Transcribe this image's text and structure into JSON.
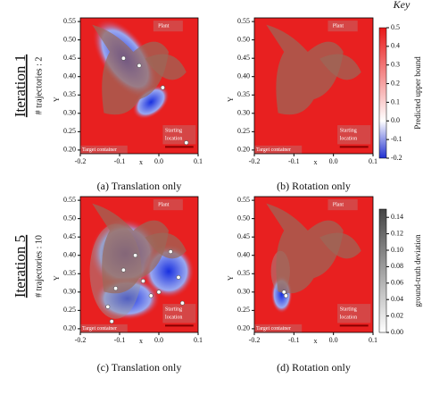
{
  "key": "Key",
  "rows": [
    {
      "title": "Iteration 1",
      "subtitle": "# trajectories : 2"
    },
    {
      "title": "Iteration 5",
      "subtitle": "# trajectories : 10"
    }
  ],
  "colorbars": [
    {
      "label": "Predicted upper bound",
      "lim": [
        -0.2,
        0.5
      ],
      "ticks": [
        0.5,
        0.4,
        0.3,
        0.2,
        0.1,
        {
          "value": 0,
          "label": "0.0"
        },
        -0.1,
        -0.2
      ],
      "colors": [
        "#2030d0",
        "#ffffff",
        "#e81818"
      ]
    },
    {
      "label": "ground-truth deviation",
      "lim": [
        0,
        0.15
      ],
      "ticks": [
        0.14,
        0.12,
        {
          "value": 0.1,
          "label": "0.10"
        },
        0.08,
        0.06,
        0.04,
        0.02,
        {
          "value": 0,
          "label": "0.00"
        }
      ],
      "colors": [
        "#ffffff",
        "#444444"
      ]
    }
  ],
  "chart_data": [
    {
      "type": "heatmap",
      "caption": "(a) Translation only",
      "xlabel": "x",
      "ylabel": "Y",
      "xlim": [
        -0.2,
        0.1
      ],
      "ylim": [
        0.19,
        0.56
      ],
      "xticks": [
        -0.2,
        -0.1,
        {
          "value": 0,
          "label": "0.0"
        },
        0.1
      ],
      "yticks": [
        {
          "value": 0.2,
          "label": "0.20"
        },
        0.25,
        {
          "value": 0.3,
          "label": "0.30"
        },
        0.35,
        {
          "value": 0.4,
          "label": "0.40"
        },
        0.45,
        {
          "value": 0.5,
          "label": "0.50"
        },
        0.55
      ],
      "plant": "Plant",
      "start": [
        "Starting",
        "location"
      ],
      "target": "Target container",
      "points": {
        "x": [
          -0.09,
          -0.05,
          0.01,
          0.07
        ],
        "y": [
          0.45,
          0.43,
          0.37,
          0.22
        ]
      }
    },
    {
      "type": "heatmap",
      "caption": "(b) Rotation only",
      "xlabel": "x",
      "ylabel": "Y",
      "xlim": [
        -0.2,
        0.1
      ],
      "ylim": [
        0.19,
        0.56
      ],
      "xticks": [
        -0.2,
        -0.1,
        {
          "value": 0,
          "label": "0.0"
        },
        0.1
      ],
      "yticks": [
        {
          "value": 0.2,
          "label": "0.20"
        },
        0.25,
        {
          "value": 0.3,
          "label": "0.30"
        },
        0.35,
        {
          "value": 0.4,
          "label": "0.40"
        },
        0.45,
        {
          "value": 0.5,
          "label": "0.50"
        },
        0.55
      ],
      "plant": "Plant",
      "start": [
        "Starting",
        "location"
      ],
      "target": "Target container",
      "points": {
        "x": [],
        "y": []
      }
    },
    {
      "type": "heatmap",
      "caption": "(c) Translation only",
      "xlabel": "x",
      "ylabel": "Y",
      "xlim": [
        -0.2,
        0.1
      ],
      "ylim": [
        0.19,
        0.56
      ],
      "xticks": [
        -0.2,
        -0.1,
        {
          "value": 0,
          "label": "0.0"
        },
        0.1
      ],
      "yticks": [
        {
          "value": 0.2,
          "label": "0.20"
        },
        0.25,
        {
          "value": 0.3,
          "label": "0.30"
        },
        0.35,
        {
          "value": 0.4,
          "label": "0.40"
        },
        0.45,
        {
          "value": 0.5,
          "label": "0.50"
        },
        0.55
      ],
      "plant": "Plant",
      "start": [
        "Starting",
        "location"
      ],
      "target": "Target container",
      "points": {
        "x": [
          -0.13,
          -0.11,
          -0.09,
          -0.06,
          -0.04,
          -0.02,
          0.0,
          0.03,
          0.05,
          0.06,
          -0.12
        ],
        "y": [
          0.26,
          0.31,
          0.36,
          0.4,
          0.33,
          0.29,
          0.3,
          0.41,
          0.34,
          0.27,
          0.22
        ]
      }
    },
    {
      "type": "heatmap",
      "caption": "(d) Rotation only",
      "xlabel": "x",
      "ylabel": "Y",
      "xlim": [
        -0.2,
        0.1
      ],
      "ylim": [
        0.19,
        0.56
      ],
      "xticks": [
        -0.2,
        -0.1,
        {
          "value": 0,
          "label": "0.0"
        },
        0.1
      ],
      "yticks": [
        {
          "value": 0.2,
          "label": "0.20"
        },
        0.25,
        {
          "value": 0.3,
          "label": "0.30"
        },
        0.35,
        {
          "value": 0.4,
          "label": "0.40"
        },
        0.45,
        {
          "value": 0.5,
          "label": "0.50"
        },
        0.55
      ],
      "plant": "Plant",
      "start": [
        "Starting",
        "location"
      ],
      "target": "Target container",
      "points": {
        "x": [
          -0.125,
          -0.12
        ],
        "y": [
          0.3,
          0.29
        ]
      }
    }
  ]
}
